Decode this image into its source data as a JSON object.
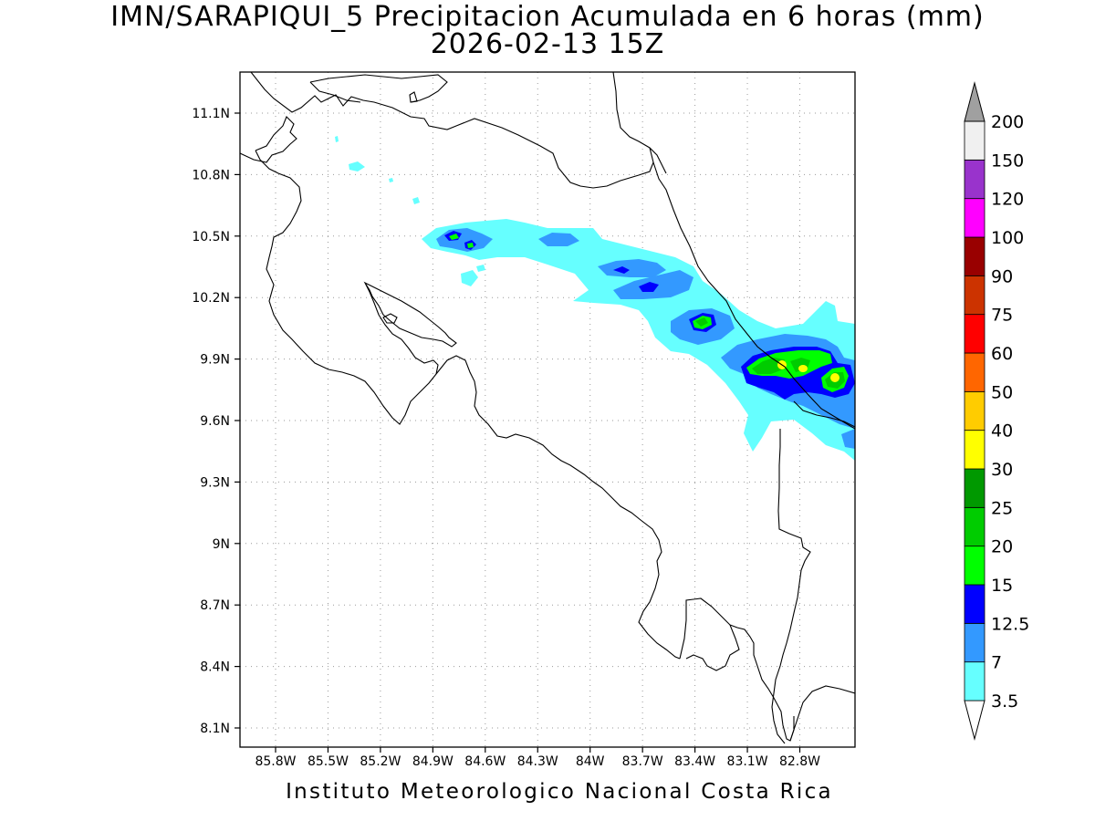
{
  "title": {
    "line1": "IMN/SARAPIQUI_5 Precipitacion Acumulada en 6 horas (mm)",
    "line2": "2026-02-13 15Z"
  },
  "footer": "Instituto Meteorologico Nacional Costa Rica",
  "map": {
    "lat_ticks": [
      "11.1N",
      "10.8N",
      "10.5N",
      "10.2N",
      "9.9N",
      "9.6N",
      "9.3N",
      "9N",
      "8.7N",
      "8.4N",
      "8.1N"
    ],
    "lon_ticks": [
      "85.8W",
      "85.5W",
      "85.2W",
      "84.9W",
      "84.6W",
      "84.3W",
      "84W",
      "83.7W",
      "83.4W",
      "83.1W",
      "82.8W"
    ],
    "variable": "Precipitacion Acumulada en 6 horas",
    "units": "mm"
  },
  "colorbar": {
    "levels": [
      "3.5",
      "7",
      "12.5",
      "15",
      "20",
      "25",
      "30",
      "40",
      "50",
      "60",
      "75",
      "90",
      "100",
      "120",
      "150",
      "200"
    ],
    "colors": [
      "#66ffff",
      "#3399ff",
      "#0000ff",
      "#00ff00",
      "#00cc00",
      "#009900",
      "#ffff00",
      "#ffcc00",
      "#ff6600",
      "#ff0000",
      "#cc3300",
      "#990000",
      "#ff00ff",
      "#9933cc",
      "#f0f0f0",
      "#a0a0a0"
    ]
  }
}
